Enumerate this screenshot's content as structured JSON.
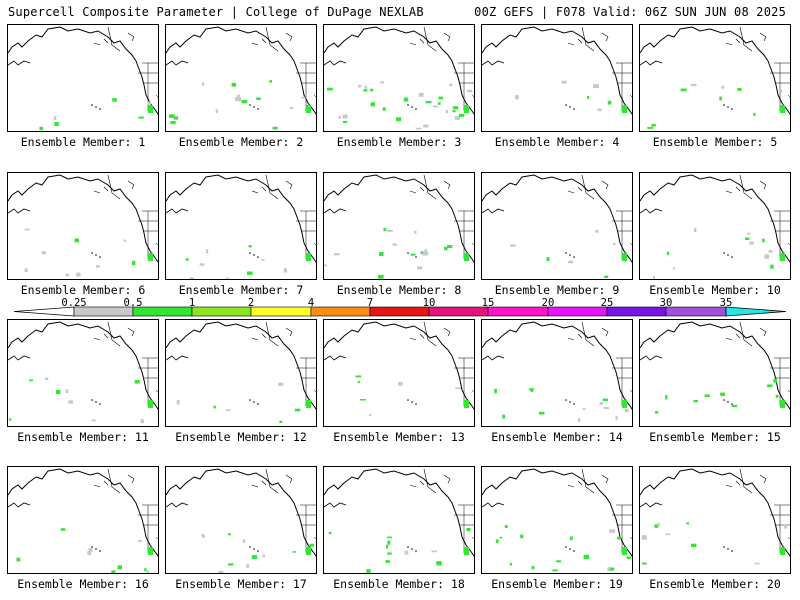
{
  "header": {
    "title_left": "Supercell Composite Parameter | College of DuPage NEXLAB",
    "title_right": "00Z GEFS | F078 Valid: 06Z SUN JUN 08 2025"
  },
  "members": [
    {
      "label": "Ensemble Member: 1",
      "speckle": 2
    },
    {
      "label": "Ensemble Member: 2",
      "speckle": 5
    },
    {
      "label": "Ensemble Member: 3",
      "speckle": 9
    },
    {
      "label": "Ensemble Member: 4",
      "speckle": 2
    },
    {
      "label": "Ensemble Member: 5",
      "speckle": 3
    },
    {
      "label": "Ensemble Member: 6",
      "speckle": 3
    },
    {
      "label": "Ensemble Member: 7",
      "speckle": 3
    },
    {
      "label": "Ensemble Member: 8",
      "speckle": 5
    },
    {
      "label": "Ensemble Member: 9",
      "speckle": 2
    },
    {
      "label": "Ensemble Member: 10",
      "speckle": 4
    },
    {
      "label": "Ensemble Member: 11",
      "speckle": 3
    },
    {
      "label": "Ensemble Member: 12",
      "speckle": 2
    },
    {
      "label": "Ensemble Member: 13",
      "speckle": 2
    },
    {
      "label": "Ensemble Member: 14",
      "speckle": 4
    },
    {
      "label": "Ensemble Member: 15",
      "speckle": 3
    },
    {
      "label": "Ensemble Member: 16",
      "speckle": 3
    },
    {
      "label": "Ensemble Member: 17",
      "speckle": 4
    },
    {
      "label": "Ensemble Member: 18",
      "speckle": 4
    },
    {
      "label": "Ensemble Member: 19",
      "speckle": 5
    },
    {
      "label": "Ensemble Member: 20",
      "speckle": 3
    }
  ],
  "legend": {
    "ticks": [
      "0.25",
      "0.5",
      "1",
      "2",
      "4",
      "7",
      "10",
      "15",
      "20",
      "25",
      "30",
      "35"
    ],
    "colors": [
      "#c8c8c8",
      "#32e632",
      "#8ce61e",
      "#ffff28",
      "#ff8c14",
      "#e61414",
      "#e6147a",
      "#ff14c8",
      "#e614ff",
      "#7814e6",
      "#a050dc",
      "#28e6e6"
    ]
  }
}
